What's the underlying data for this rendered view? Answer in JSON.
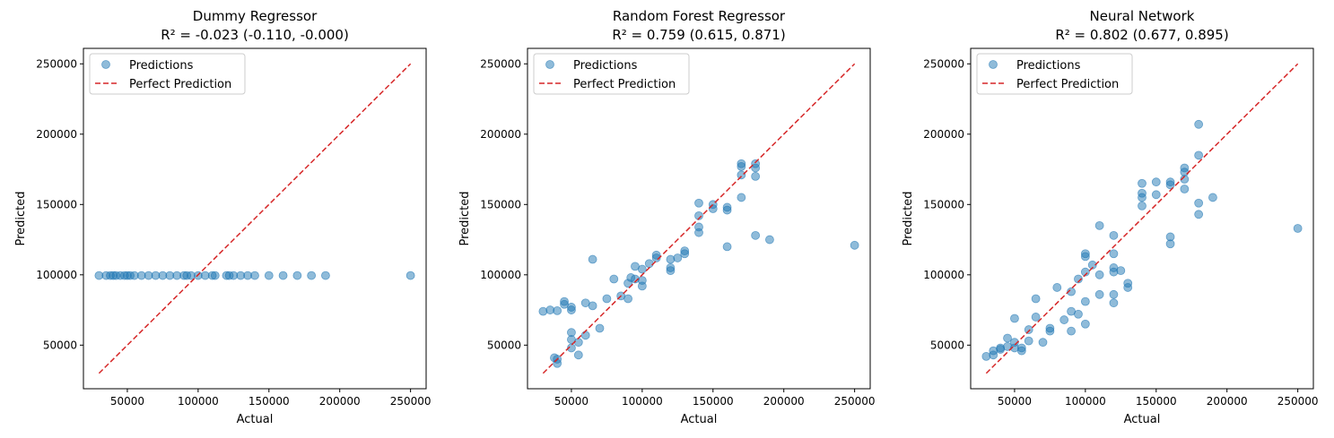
{
  "chart_data": [
    {
      "type": "scatter",
      "title": "Dummy Regressor",
      "subtitle": "R² = -0.023 (-0.110, -0.000)",
      "xlabel": "Actual",
      "ylabel": "Predicted",
      "xlim": [
        19000,
        261000
      ],
      "ylim": [
        19000,
        261000
      ],
      "xticks": [
        50000,
        100000,
        150000,
        200000,
        250000
      ],
      "yticks": [
        50000,
        100000,
        150000,
        200000,
        250000
      ],
      "xtick_labels": [
        "50000",
        "100000",
        "150000",
        "200000",
        "250000"
      ],
      "ytick_labels": [
        "50000",
        "100000",
        "150000",
        "200000",
        "250000"
      ],
      "legend": {
        "position": "top-left",
        "entries": [
          "Predictions",
          "Perfect Prediction"
        ]
      },
      "series": [
        {
          "name": "Predictions",
          "kind": "scatter",
          "color": "#1f77b4",
          "points": [
            [
              30000,
              99500
            ],
            [
              35000,
              99500
            ],
            [
              38000,
              99500
            ],
            [
              40000,
              99500
            ],
            [
              42000,
              99500
            ],
            [
              45000,
              99500
            ],
            [
              48000,
              99500
            ],
            [
              50000,
              99500
            ],
            [
              52000,
              99500
            ],
            [
              55000,
              99500
            ],
            [
              60000,
              99500
            ],
            [
              65000,
              99500
            ],
            [
              70000,
              99500
            ],
            [
              75000,
              99500
            ],
            [
              80000,
              99500
            ],
            [
              85000,
              99500
            ],
            [
              90000,
              99500
            ],
            [
              92000,
              99500
            ],
            [
              95000,
              99500
            ],
            [
              100000,
              99500
            ],
            [
              105000,
              99500
            ],
            [
              110000,
              99500
            ],
            [
              112000,
              99500
            ],
            [
              120000,
              99500
            ],
            [
              122000,
              99500
            ],
            [
              125000,
              99500
            ],
            [
              130000,
              99500
            ],
            [
              135000,
              99500
            ],
            [
              140000,
              99500
            ],
            [
              150000,
              99500
            ],
            [
              160000,
              99500
            ],
            [
              170000,
              99500
            ],
            [
              180000,
              99500
            ],
            [
              190000,
              99500
            ],
            [
              250000,
              99500
            ]
          ]
        },
        {
          "name": "Perfect Prediction",
          "kind": "line",
          "color": "#d62728",
          "points": [
            [
              30000,
              30000
            ],
            [
              250000,
              250000
            ]
          ]
        }
      ]
    },
    {
      "type": "scatter",
      "title": "Random Forest Regressor",
      "subtitle": "R² = 0.759 (0.615, 0.871)",
      "xlabel": "Actual",
      "ylabel": "Predicted",
      "xlim": [
        19000,
        261000
      ],
      "ylim": [
        19000,
        261000
      ],
      "xticks": [
        50000,
        100000,
        150000,
        200000,
        250000
      ],
      "yticks": [
        50000,
        100000,
        150000,
        200000,
        250000
      ],
      "xtick_labels": [
        "50000",
        "100000",
        "150000",
        "200000",
        "250000"
      ],
      "ytick_labels": [
        "50000",
        "100000",
        "150000",
        "200000",
        "250000"
      ],
      "legend": {
        "position": "top-left",
        "entries": [
          "Predictions",
          "Perfect Prediction"
        ]
      },
      "series": [
        {
          "name": "Predictions",
          "kind": "scatter",
          "color": "#1f77b4",
          "points": [
            [
              30000,
              74000
            ],
            [
              35000,
              75000
            ],
            [
              38000,
              41000
            ],
            [
              40000,
              37000
            ],
            [
              40000,
              40000
            ],
            [
              40000,
              74500
            ],
            [
              45000,
              79000
            ],
            [
              45000,
              81000
            ],
            [
              50000,
              77000
            ],
            [
              50000,
              75000
            ],
            [
              50000,
              59000
            ],
            [
              50000,
              54000
            ],
            [
              50000,
              48000
            ],
            [
              55000,
              52000
            ],
            [
              55000,
              43000
            ],
            [
              60000,
              80000
            ],
            [
              60000,
              57000
            ],
            [
              65000,
              78000
            ],
            [
              65000,
              111000
            ],
            [
              70000,
              62000
            ],
            [
              75000,
              83000
            ],
            [
              80000,
              97000
            ],
            [
              85000,
              85000
            ],
            [
              90000,
              83000
            ],
            [
              90000,
              94000
            ],
            [
              92000,
              98000
            ],
            [
              95000,
              106000
            ],
            [
              95000,
              97000
            ],
            [
              100000,
              104000
            ],
            [
              100000,
              96000
            ],
            [
              100000,
              92000
            ],
            [
              105000,
              108000
            ],
            [
              110000,
              112000
            ],
            [
              110000,
              114000
            ],
            [
              120000,
              111000
            ],
            [
              120000,
              105000
            ],
            [
              120000,
              103000
            ],
            [
              125000,
              112000
            ],
            [
              130000,
              117000
            ],
            [
              130000,
              115000
            ],
            [
              140000,
              151000
            ],
            [
              140000,
              142000
            ],
            [
              140000,
              134000
            ],
            [
              140000,
              130000
            ],
            [
              150000,
              150000
            ],
            [
              150000,
              147000
            ],
            [
              160000,
              148000
            ],
            [
              160000,
              146000
            ],
            [
              160000,
              120000
            ],
            [
              170000,
              179000
            ],
            [
              170000,
              177000
            ],
            [
              170000,
              171000
            ],
            [
              170000,
              155000
            ],
            [
              180000,
              179000
            ],
            [
              180000,
              176000
            ],
            [
              180000,
              170000
            ],
            [
              180000,
              128000
            ],
            [
              190000,
              125000
            ],
            [
              250000,
              121000
            ]
          ]
        },
        {
          "name": "Perfect Prediction",
          "kind": "line",
          "color": "#d62728",
          "points": [
            [
              30000,
              30000
            ],
            [
              250000,
              250000
            ]
          ]
        }
      ]
    },
    {
      "type": "scatter",
      "title": "Neural Network",
      "subtitle": "R² = 0.802 (0.677, 0.895)",
      "xlabel": "Actual",
      "ylabel": "Predicted",
      "xlim": [
        19000,
        261000
      ],
      "ylim": [
        19000,
        261000
      ],
      "xticks": [
        50000,
        100000,
        150000,
        200000,
        250000
      ],
      "yticks": [
        50000,
        100000,
        150000,
        200000,
        250000
      ],
      "xtick_labels": [
        "50000",
        "100000",
        "150000",
        "200000",
        "250000"
      ],
      "ytick_labels": [
        "50000",
        "100000",
        "150000",
        "200000",
        "250000"
      ],
      "legend": {
        "position": "top-left",
        "entries": [
          "Predictions",
          "Perfect Prediction"
        ]
      },
      "series": [
        {
          "name": "Predictions",
          "kind": "scatter",
          "color": "#1f77b4",
          "points": [
            [
              30000,
              42000
            ],
            [
              35000,
              43000
            ],
            [
              35000,
              46000
            ],
            [
              40000,
              48000
            ],
            [
              40000,
              47000
            ],
            [
              45000,
              55000
            ],
            [
              45000,
              49000
            ],
            [
              50000,
              69000
            ],
            [
              50000,
              52000
            ],
            [
              50000,
              48000
            ],
            [
              55000,
              48000
            ],
            [
              55000,
              46000
            ],
            [
              60000,
              61000
            ],
            [
              60000,
              53000
            ],
            [
              65000,
              83000
            ],
            [
              65000,
              70000
            ],
            [
              70000,
              52000
            ],
            [
              75000,
              62000
            ],
            [
              75000,
              60000
            ],
            [
              80000,
              91000
            ],
            [
              85000,
              68000
            ],
            [
              90000,
              88000
            ],
            [
              90000,
              74000
            ],
            [
              90000,
              60000
            ],
            [
              95000,
              97000
            ],
            [
              95000,
              72000
            ],
            [
              100000,
              115000
            ],
            [
              100000,
              113000
            ],
            [
              100000,
              102000
            ],
            [
              100000,
              81000
            ],
            [
              100000,
              65000
            ],
            [
              105000,
              107000
            ],
            [
              110000,
              135000
            ],
            [
              110000,
              100000
            ],
            [
              110000,
              86000
            ],
            [
              120000,
              128000
            ],
            [
              120000,
              115000
            ],
            [
              120000,
              105000
            ],
            [
              120000,
              102000
            ],
            [
              120000,
              86000
            ],
            [
              120000,
              80000
            ],
            [
              125000,
              103000
            ],
            [
              130000,
              94000
            ],
            [
              130000,
              91000
            ],
            [
              140000,
              165000
            ],
            [
              140000,
              158000
            ],
            [
              140000,
              155000
            ],
            [
              140000,
              149000
            ],
            [
              150000,
              166000
            ],
            [
              150000,
              157000
            ],
            [
              160000,
              166000
            ],
            [
              160000,
              164000
            ],
            [
              160000,
              127000
            ],
            [
              160000,
              122000
            ],
            [
              170000,
              176000
            ],
            [
              170000,
              173000
            ],
            [
              170000,
              168000
            ],
            [
              170000,
              161000
            ],
            [
              180000,
              207000
            ],
            [
              180000,
              185000
            ],
            [
              180000,
              151000
            ],
            [
              180000,
              143000
            ],
            [
              190000,
              155000
            ],
            [
              250000,
              133000
            ]
          ]
        },
        {
          "name": "Perfect Prediction",
          "kind": "line",
          "color": "#d62728",
          "points": [
            [
              30000,
              30000
            ],
            [
              250000,
              250000
            ]
          ]
        }
      ]
    }
  ]
}
